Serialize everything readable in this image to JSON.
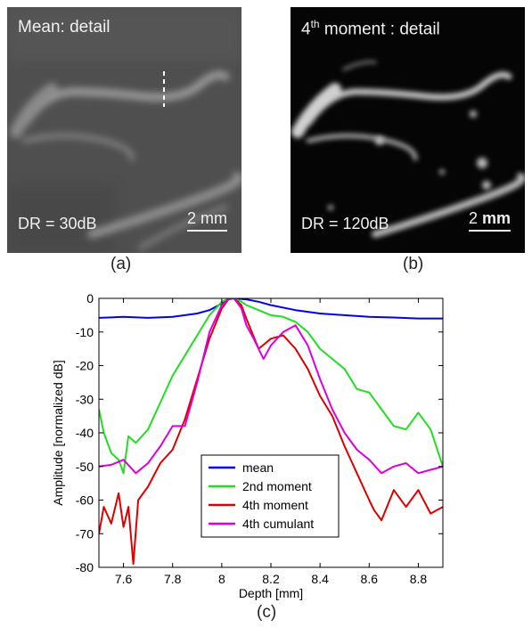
{
  "panel_a": {
    "title": "Mean: detail",
    "dr": "DR = 30dB",
    "scale": "2 mm",
    "caption": "(a)"
  },
  "panel_b": {
    "title_prefix": "4",
    "title_sup": "th",
    "title_rest": " moment : detail",
    "dr": "DR = 120dB",
    "scale_num": "2",
    "scale_unit": "mm",
    "caption": "(b)"
  },
  "panel_c": {
    "caption": "(c)"
  },
  "chart_data": {
    "type": "line",
    "title": "",
    "xlabel": "Depth [mm]",
    "ylabel": "Amplitude [normalized dB]",
    "xlim": [
      7.5,
      8.9
    ],
    "ylim": [
      -80,
      0
    ],
    "xticks": [
      7.6,
      7.8,
      8,
      8.2,
      8.4,
      8.6,
      8.8
    ],
    "yticks": [
      0,
      -10,
      -20,
      -30,
      -40,
      -50,
      -60,
      -70,
      -80
    ],
    "xtick_labels": [
      "7.6",
      "7.8",
      "8",
      "8.2",
      "8.4",
      "8.6",
      "8.8"
    ],
    "ytick_labels": [
      "0",
      "-10",
      "-20",
      "-30",
      "-40",
      "-50",
      "-60",
      "-70",
      "-80"
    ],
    "grid": false,
    "legend_position": "bottom-center",
    "series": [
      {
        "name": "mean",
        "color": "#0000ee",
        "x": [
          7.5,
          7.6,
          7.7,
          7.8,
          7.9,
          7.95,
          8.0,
          8.03,
          8.05,
          8.1,
          8.15,
          8.2,
          8.3,
          8.4,
          8.5,
          8.6,
          8.7,
          8.8,
          8.9
        ],
        "y": [
          -5.8,
          -5.5,
          -5.8,
          -5.5,
          -4.5,
          -3.5,
          -1.5,
          -0.2,
          0,
          -0.3,
          -1.0,
          -2.0,
          -3.5,
          -4.5,
          -5.0,
          -5.5,
          -5.7,
          -6.0,
          -6.0
        ]
      },
      {
        "name": "2nd moment",
        "color": "#22dd22",
        "x": [
          7.5,
          7.52,
          7.55,
          7.58,
          7.6,
          7.62,
          7.65,
          7.7,
          7.75,
          7.8,
          7.85,
          7.9,
          7.95,
          8.0,
          8.03,
          8.05,
          8.08,
          8.1,
          8.15,
          8.2,
          8.25,
          8.3,
          8.35,
          8.4,
          8.45,
          8.5,
          8.55,
          8.6,
          8.65,
          8.7,
          8.75,
          8.8,
          8.85,
          8.9
        ],
        "y": [
          -33,
          -40,
          -46,
          -48,
          -52,
          -41,
          -43,
          -39,
          -31,
          -23,
          -17,
          -11,
          -5,
          -1,
          0,
          0,
          -1,
          -2,
          -3.5,
          -5,
          -5.5,
          -7,
          -10,
          -15,
          -18,
          -21,
          -27,
          -28,
          -33,
          -38,
          -39,
          -34,
          -39,
          -50
        ]
      },
      {
        "name": "4th moment",
        "color": "#dd0000",
        "x": [
          7.5,
          7.52,
          7.55,
          7.58,
          7.6,
          7.62,
          7.64,
          7.66,
          7.7,
          7.75,
          7.8,
          7.85,
          7.9,
          7.95,
          8.0,
          8.03,
          8.05,
          8.08,
          8.1,
          8.15,
          8.2,
          8.25,
          8.3,
          8.35,
          8.4,
          8.45,
          8.5,
          8.55,
          8.6,
          8.62,
          8.65,
          8.7,
          8.75,
          8.8,
          8.85,
          8.9
        ],
        "y": [
          -70,
          -62,
          -67,
          -58,
          -68,
          -62,
          -79,
          -60,
          -56,
          -49,
          -45,
          -36,
          -24,
          -12,
          -3,
          0,
          0,
          -2,
          -6,
          -15,
          -12,
          -11,
          -15,
          -21,
          -29,
          -35,
          -44,
          -52,
          -60,
          -63,
          -66,
          -57,
          -62,
          -57,
          -64,
          -62
        ]
      },
      {
        "name": "4th cumulant",
        "color": "#dd00dd",
        "x": [
          7.5,
          7.55,
          7.6,
          7.65,
          7.7,
          7.75,
          7.8,
          7.85,
          7.9,
          7.95,
          8.0,
          8.03,
          8.05,
          8.08,
          8.1,
          8.13,
          8.17,
          8.2,
          8.25,
          8.3,
          8.35,
          8.4,
          8.45,
          8.5,
          8.55,
          8.6,
          8.65,
          8.7,
          8.75,
          8.8,
          8.85,
          8.9
        ],
        "y": [
          -50,
          -49.5,
          -48,
          -52,
          -49,
          -44,
          -38,
          -38,
          -25,
          -10,
          -2,
          0,
          0,
          -3,
          -8,
          -12,
          -18,
          -14,
          -10,
          -8,
          -14,
          -24,
          -33,
          -40,
          -45,
          -48,
          -52,
          -50,
          -49,
          -52,
          -51,
          -50
        ]
      }
    ]
  }
}
